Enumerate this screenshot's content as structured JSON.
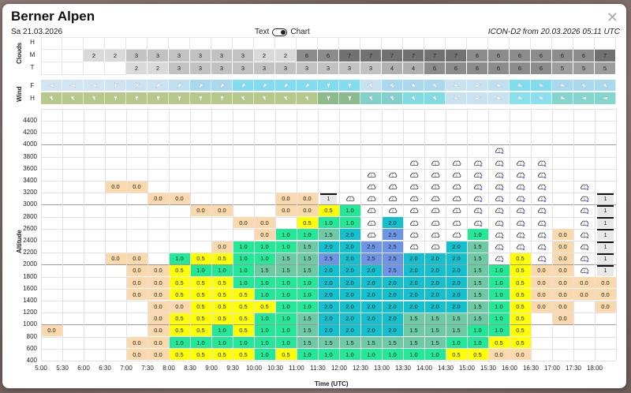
{
  "header": {
    "title": "Berner Alpen",
    "date": "Sa 21.03.2026",
    "toggle_left": "Text",
    "toggle_right": "Chart",
    "model_info": "ICON-D2 from 20.03.2026 05:11 UTC",
    "close_icon": "close-icon"
  },
  "clouds": {
    "label": "Clouds",
    "rows": [
      "H",
      "M",
      "T"
    ],
    "H": [
      "",
      "",
      "",
      "",
      "",
      "",
      "",
      "",
      "",
      "",
      "",
      "",
      "",
      "",
      "",
      "",
      "",
      "",
      "",
      "",
      "",
      "",
      "",
      "",
      "",
      "",
      ""
    ],
    "M": [
      "",
      "",
      "2",
      "2",
      "3",
      "3",
      "3",
      "3",
      "3",
      "3",
      "2",
      "2",
      "6",
      "6",
      "7",
      "7",
      "7",
      "7",
      "7",
      "7",
      "6",
      "6",
      "6",
      "6",
      "6",
      "6",
      "7"
    ],
    "T": [
      "",
      "",
      "",
      "",
      "2",
      "2",
      "3",
      "3",
      "3",
      "3",
      "3",
      "3",
      "3",
      "3",
      "3",
      "3",
      "4",
      "4",
      "6",
      "6",
      "6",
      "6",
      "6",
      "6",
      "5",
      "5",
      "5"
    ],
    "colors": {
      "2": "#d9d9d9",
      "3": "#c2c2c2",
      "4": "#b0b0b0",
      "5": "#9d9d9d",
      "6": "#8c8c8c",
      "7": "#717171"
    }
  },
  "wind": {
    "label": "Wind",
    "rows": [
      "F",
      "H"
    ],
    "F_colors": [
      "#d2e5f3",
      "#d2e5f3",
      "#d2e5f3",
      "#cfe4f3",
      "#cae2f2",
      "#cae2f2",
      "#bfe0f1",
      "#a9d9ee",
      "#a9d9ee",
      "#82dcef",
      "#82dcef",
      "#82dcef",
      "#82dcef",
      "#82dcef",
      "#82dcef",
      "#c9e2f2",
      "#a9d9ee",
      "#a9d9ee",
      "#a9d9ee",
      "#c9e2f2",
      "#c9e2f2",
      "#bfe0f1",
      "#82dcef",
      "#82dcef",
      "#a9d9ee",
      "#a9d9ee",
      "#a9d9ee"
    ],
    "H_colors": [
      "#b6c98b",
      "#b6c98b",
      "#b6c98b",
      "#b6c98b",
      "#b6c98b",
      "#b6c98b",
      "#b6c98b",
      "#b6c98b",
      "#b6c98b",
      "#b6c98b",
      "#b6c98b",
      "#b6c98b",
      "#b6c98b",
      "#8cba8c",
      "#8cba8c",
      "#80d1c9",
      "#80d1c9",
      "#80dce2",
      "#80dce2",
      "#c9e2f2",
      "#c9e2f2",
      "#c9e2f2",
      "#8be0ef",
      "#8be0ef",
      "#82d6ce",
      "#82d6ce",
      "#82d6ce"
    ],
    "F_dirs": [
      270,
      270,
      270,
      200,
      200,
      225,
      220,
      220,
      220,
      220,
      220,
      220,
      220,
      180,
      180,
      160,
      150,
      135,
      135,
      110,
      70,
      110,
      110,
      110,
      110,
      150,
      150
    ],
    "H_dirs": [
      160,
      160,
      160,
      180,
      180,
      180,
      180,
      180,
      180,
      160,
      160,
      160,
      160,
      180,
      180,
      160,
      160,
      150,
      150,
      110,
      70,
      110,
      110,
      110,
      110,
      270,
      270
    ]
  },
  "chart_data": {
    "type": "heatmap",
    "title": "Thermal climb rate by altitude and time",
    "xlabel": "Time (UTC)",
    "ylabel": "Altitude",
    "x_ticks": [
      "5:00",
      "5:30",
      "6:00",
      "6:30",
      "7:00",
      "7:30",
      "8:00",
      "8:30",
      "9:00",
      "9:30",
      "10:00",
      "10:30",
      "11:00",
      "11:30",
      "12:00",
      "12:30",
      "13:00",
      "13:30",
      "14:00",
      "14:30",
      "15:00",
      "15:30",
      "16:00",
      "16:30",
      "17:00",
      "17:30",
      "18:00"
    ],
    "y_ticks": [
      400,
      600,
      800,
      1000,
      1200,
      1400,
      1600,
      1800,
      2000,
      2200,
      2400,
      2600,
      2800,
      3000,
      3200,
      3400,
      3600,
      3800,
      4000,
      4200,
      4400
    ],
    "legend": {
      "C": "cloud",
      "CB": "cloud with precipitation badge",
      "B1": "cloud-base bar 1"
    },
    "color_scale": {
      "0.0": "#fbd9ad",
      "0.5": "#ffff00",
      "1.0": "#22e897",
      "1.5": "#6dcaa5",
      "2.0": "#14c0cd",
      "2.5": "#6e94e6"
    },
    "columns": [
      {
        "time": "5:00",
        "cells": {
          "800": "0.0"
        }
      },
      {
        "time": "5:30",
        "cells": {}
      },
      {
        "time": "6:00",
        "cells": {}
      },
      {
        "time": "6:30",
        "cells": {
          "3200": "0.0",
          "2000": "0.0"
        }
      },
      {
        "time": "7:00",
        "cells": {
          "3200": "0.0",
          "2000": "0.0",
          "1800": "0.0",
          "1600": "0.0",
          "1400": "0.0",
          "600": "0.0",
          "400": "0.0"
        }
      },
      {
        "time": "7:30",
        "cells": {
          "3000": "0.0",
          "1800": "0.0",
          "1600": "0.0",
          "1400": "0.0",
          "1200": "0.0",
          "1000": "0.0",
          "800": "0.0",
          "600": "0.0",
          "400": "0.0"
        }
      },
      {
        "time": "8:00",
        "cells": {
          "3000": "0.0",
          "2000": "1.0",
          "1800": "0.5",
          "1600": "0.5",
          "1400": "0.5",
          "1200": "0.0",
          "1000": "0.5",
          "800": "0.5",
          "600": "1.0",
          "400": "0.5"
        }
      },
      {
        "time": "8:30",
        "cells": {
          "2800": "0.0",
          "2000": "0.5",
          "1800": "1.0",
          "1600": "0.5",
          "1400": "0.5",
          "1200": "0.5",
          "1000": "0.5",
          "800": "0.5",
          "600": "1.0",
          "400": "0.5"
        }
      },
      {
        "time": "9:00",
        "cells": {
          "2800": "0.0",
          "2200": "0.0",
          "2000": "0.5",
          "1800": "1.0",
          "1600": "0.5",
          "1400": "0.5",
          "1200": "0.5",
          "1000": "0.5",
          "800": "1.0",
          "600": "1.0",
          "400": "0.5"
        }
      },
      {
        "time": "9:30",
        "cells": {
          "2600": "0.0",
          "2200": "1.0",
          "2000": "1.0",
          "1800": "1.0",
          "1600": "1.0",
          "1400": "0.5",
          "1200": "0.5",
          "1000": "0.5",
          "800": "0.5",
          "600": "1.0",
          "400": "0.5"
        }
      },
      {
        "time": "10:00",
        "cells": {
          "2600": "0.0",
          "2400": "0.0",
          "2200": "1.0",
          "2000": "1.0",
          "1800": "1.5",
          "1600": "1.0",
          "1400": "1.0",
          "1200": "0.5",
          "1000": "1.0",
          "800": "1.0",
          "600": "1.0",
          "400": "1.0"
        }
      },
      {
        "time": "10:30",
        "cells": {
          "3000": "0.0",
          "2800": "0.0",
          "2400": "1.0",
          "2200": "1.0",
          "2000": "1.5",
          "1800": "1.5",
          "1600": "1.0",
          "1400": "1.0",
          "1200": "1.0",
          "1000": "1.0",
          "800": "1.0",
          "600": "1.0",
          "400": "0.5"
        }
      },
      {
        "time": "11:00",
        "cells": {
          "3000": "0.0",
          "2800": "0.0",
          "2600": "0.5",
          "2400": "1.0",
          "2200": "1.5",
          "2000": "1.5",
          "1800": "1.5",
          "1600": "1.0",
          "1400": "1.0",
          "1200": "1.0",
          "1000": "1.5",
          "800": "1.5",
          "600": "1.5",
          "400": "1.0"
        }
      },
      {
        "time": "11:30",
        "cells": {
          "3000": "B1",
          "2800": "0.5",
          "2600": "1.0",
          "2400": "1.5",
          "2200": "2.0",
          "2000": "2.5",
          "1800": "2.0",
          "1600": "2.0",
          "1400": "2.0",
          "1200": "2.0",
          "1000": "2.0",
          "800": "2.0",
          "600": "1.5",
          "400": "1.0"
        }
      },
      {
        "time": "12:00",
        "cells": {
          "3000": "C",
          "2800": "1.0",
          "2600": "1.0",
          "2400": "2.0",
          "2200": "2.0",
          "2000": "2.0",
          "1800": "2.0",
          "1600": "2.0",
          "1400": "2.0",
          "1200": "2.0",
          "1000": "2.0",
          "800": "2.0",
          "600": "1.5",
          "400": "1.0"
        }
      },
      {
        "time": "12:30",
        "cells": {
          "3400": "C",
          "3200": "C",
          "3000": "C",
          "2800": "C",
          "2600": "C",
          "2400": "C",
          "2200": "2.5",
          "2000": "2.5",
          "1800": "2.0",
          "1600": "2.0",
          "1400": "2.0",
          "1200": "2.0",
          "1000": "2.0",
          "800": "2.0",
          "600": "1.5",
          "400": "1.0"
        }
      },
      {
        "time": "13:00",
        "cells": {
          "3400": "C",
          "3200": "C",
          "3000": "C",
          "2800": "C",
          "2600": "2.0",
          "2400": "2.5",
          "2200": "2.5",
          "2000": "2.5",
          "1800": "2.5",
          "1600": "2.0",
          "1400": "2.0",
          "1200": "2.0",
          "1000": "2.0",
          "800": "2.0",
          "600": "1.5",
          "400": "1.0"
        }
      },
      {
        "time": "13:30",
        "cells": {
          "3600": "C",
          "3400": "C",
          "3200": "C",
          "3000": "C",
          "2800": "C",
          "2600": "C",
          "2400": "C",
          "2200": "C",
          "2000": "2.0",
          "1800": "2.0",
          "1600": "2.0",
          "1400": "2.0",
          "1200": "2.0",
          "1000": "1.5",
          "800": "1.5",
          "600": "1.5",
          "400": "1.0"
        }
      },
      {
        "time": "14:00",
        "cells": {
          "3600": "C",
          "3400": "C",
          "3200": "C",
          "3000": "C",
          "2800": "C",
          "2600": "C",
          "2400": "C",
          "2200": "C",
          "2000": "2.0",
          "1800": "2.0",
          "1600": "2.0",
          "1400": "2.0",
          "1200": "2.0",
          "1000": "1.5",
          "800": "1.5",
          "600": "1.5",
          "400": "1.0"
        }
      },
      {
        "time": "14:30",
        "cells": {
          "3600": "C",
          "3400": "C",
          "3200": "C",
          "3000": "C",
          "2800": "C",
          "2600": "C",
          "2400": "C",
          "2200": "2.0",
          "2000": "2.0",
          "1800": "2.0",
          "1600": "2.0",
          "1400": "2.0",
          "1200": "2.0",
          "1000": "1.5",
          "800": "1.5",
          "600": "1.0",
          "400": "0.5"
        }
      },
      {
        "time": "15:00",
        "cells": {
          "3600": "CB",
          "3400": "CB",
          "3200": "CB",
          "3000": "CB",
          "2800": "CB",
          "2600": "CB",
          "2400": "1.0",
          "2200": "1.5",
          "2000": "1.5",
          "1800": "1.5",
          "1600": "1.5",
          "1400": "1.5",
          "1200": "1.5",
          "1000": "1.5",
          "800": "1.0",
          "600": "1.0",
          "400": "0.5"
        }
      },
      {
        "time": "15:30",
        "cells": {
          "3800": "CB",
          "3600": "CB",
          "3400": "CB",
          "3200": "CB",
          "3000": "CB",
          "2800": "CB",
          "2600": "CB",
          "2400": "CB",
          "2200": "CB",
          "2000": "CB",
          "1800": "1.0",
          "1600": "1.0",
          "1400": "1.0",
          "1200": "1.0",
          "1000": "1.0",
          "800": "1.0",
          "600": "0.5",
          "400": "0.0"
        }
      },
      {
        "time": "16:00",
        "cells": {
          "3600": "CB",
          "3400": "CB",
          "3200": "CB",
          "3000": "CB",
          "2800": "CB",
          "2600": "CB",
          "2400": "CB",
          "2200": "CB",
          "2000": "0.5",
          "1800": "0.5",
          "1600": "0.5",
          "1400": "0.5",
          "1200": "0.5",
          "1000": "0.5",
          "800": "0.5",
          "600": "0.5",
          "400": "0.0"
        }
      },
      {
        "time": "16:30",
        "cells": {
          "3600": "CB",
          "3400": "CB",
          "3200": "CB",
          "3000": "CB",
          "2800": "CB",
          "2600": "CB",
          "2400": "CB",
          "2200": "CB",
          "2000": "CB",
          "1800": "0.0",
          "1600": "0.0",
          "1400": "0.0",
          "1200": "0.0"
        }
      },
      {
        "time": "17:00",
        "cells": {
          "2400": "0.0",
          "2200": "0.0",
          "2000": "0.0",
          "1800": "0.0",
          "1600": "0.0",
          "1400": "0.0",
          "1200": "0.0",
          "1000": "0.0"
        }
      },
      {
        "time": "17:30",
        "cells": {
          "3200": "CB",
          "3000": "CB",
          "2800": "CB",
          "2600": "CB",
          "2400": "CB",
          "2200": "CB",
          "2000": "CB",
          "1800": "CB",
          "1600": "0.0",
          "1400": "0.0"
        }
      },
      {
        "time": "18:00",
        "cells": {
          "3000": "B1",
          "2800": "B1",
          "2600": "B1",
          "2400": "B1",
          "2200": "B1",
          "2000": "B1",
          "1800": "B1",
          "1600": "0.0",
          "1400": "0.0",
          "1200": "0.0"
        }
      }
    ],
    "box_label": "1",
    "cloud_label": "1"
  }
}
